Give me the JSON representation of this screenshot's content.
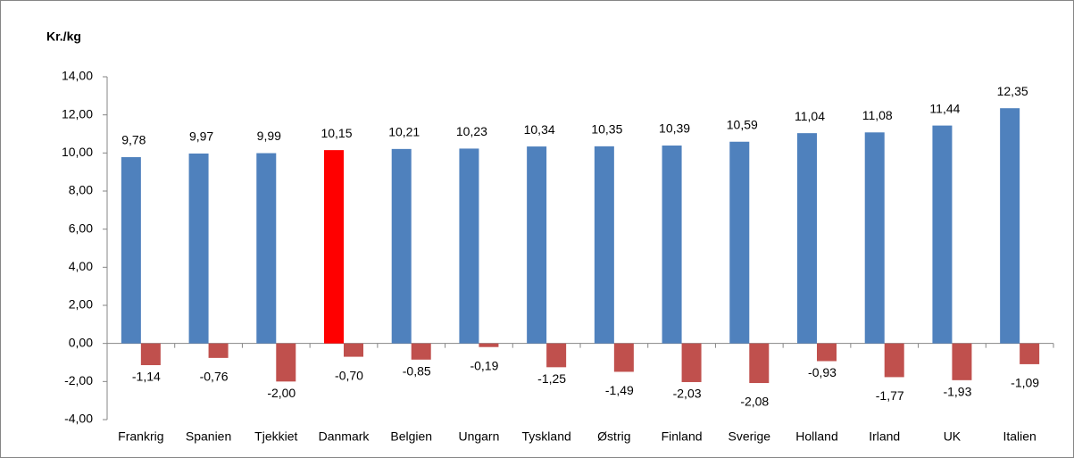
{
  "chart_data": {
    "type": "bar",
    "y_label": "Kr./kg",
    "categories": [
      "Frankrig",
      "Spanien",
      "Tjekkiet",
      "Danmark",
      "Belgien",
      "Ungarn",
      "Tyskland",
      "Østrig",
      "Finland",
      "Sverige",
      "Holland",
      "Irland",
      "UK",
      "Italien"
    ],
    "series": [
      {
        "color": "#4f81bd",
        "point_colors": [
          "#4f81bd",
          "#4f81bd",
          "#4f81bd",
          "#ff0000",
          "#4f81bd",
          "#4f81bd",
          "#4f81bd",
          "#4f81bd",
          "#4f81bd",
          "#4f81bd",
          "#4f81bd",
          "#4f81bd",
          "#4f81bd",
          "#4f81bd"
        ],
        "values": [
          9.78,
          9.97,
          9.99,
          10.15,
          10.21,
          10.23,
          10.34,
          10.35,
          10.39,
          10.59,
          11.04,
          11.08,
          11.44,
          12.35
        ],
        "value_labels": [
          "9,78",
          "9,97",
          "9,99",
          "10,15",
          "10,21",
          "10,23",
          "10,34",
          "10,35",
          "10,39",
          "10,59",
          "11,04",
          "11,08",
          "11,44",
          "12,35"
        ]
      },
      {
        "color": "#c0504d",
        "values": [
          -1.14,
          -0.76,
          -2.0,
          -0.7,
          -0.85,
          -0.19,
          -1.25,
          -1.49,
          -2.03,
          -2.08,
          -0.93,
          -1.77,
          -1.93,
          -1.09
        ],
        "value_labels": [
          "-1,14",
          "-0,76",
          "-2,00",
          "-0,70",
          "-0,85",
          "-0,19",
          "-1,25",
          "-1,49",
          "-2,03",
          "-2,08",
          "-0,93",
          "-1,77",
          "-1,93",
          "-1,09"
        ]
      }
    ],
    "ylim": [
      -4,
      14
    ],
    "yticks": [
      {
        "value": -4,
        "label": "-4,00"
      },
      {
        "value": -2,
        "label": "-2,00"
      },
      {
        "value": 0,
        "label": "0,00"
      },
      {
        "value": 2,
        "label": "2,00"
      },
      {
        "value": 4,
        "label": "4,00"
      },
      {
        "value": 6,
        "label": "6,00"
      },
      {
        "value": 8,
        "label": "8,00"
      },
      {
        "value": 10,
        "label": "10,00"
      },
      {
        "value": 12,
        "label": "12,00"
      },
      {
        "value": 14,
        "label": "14,00"
      }
    ]
  }
}
